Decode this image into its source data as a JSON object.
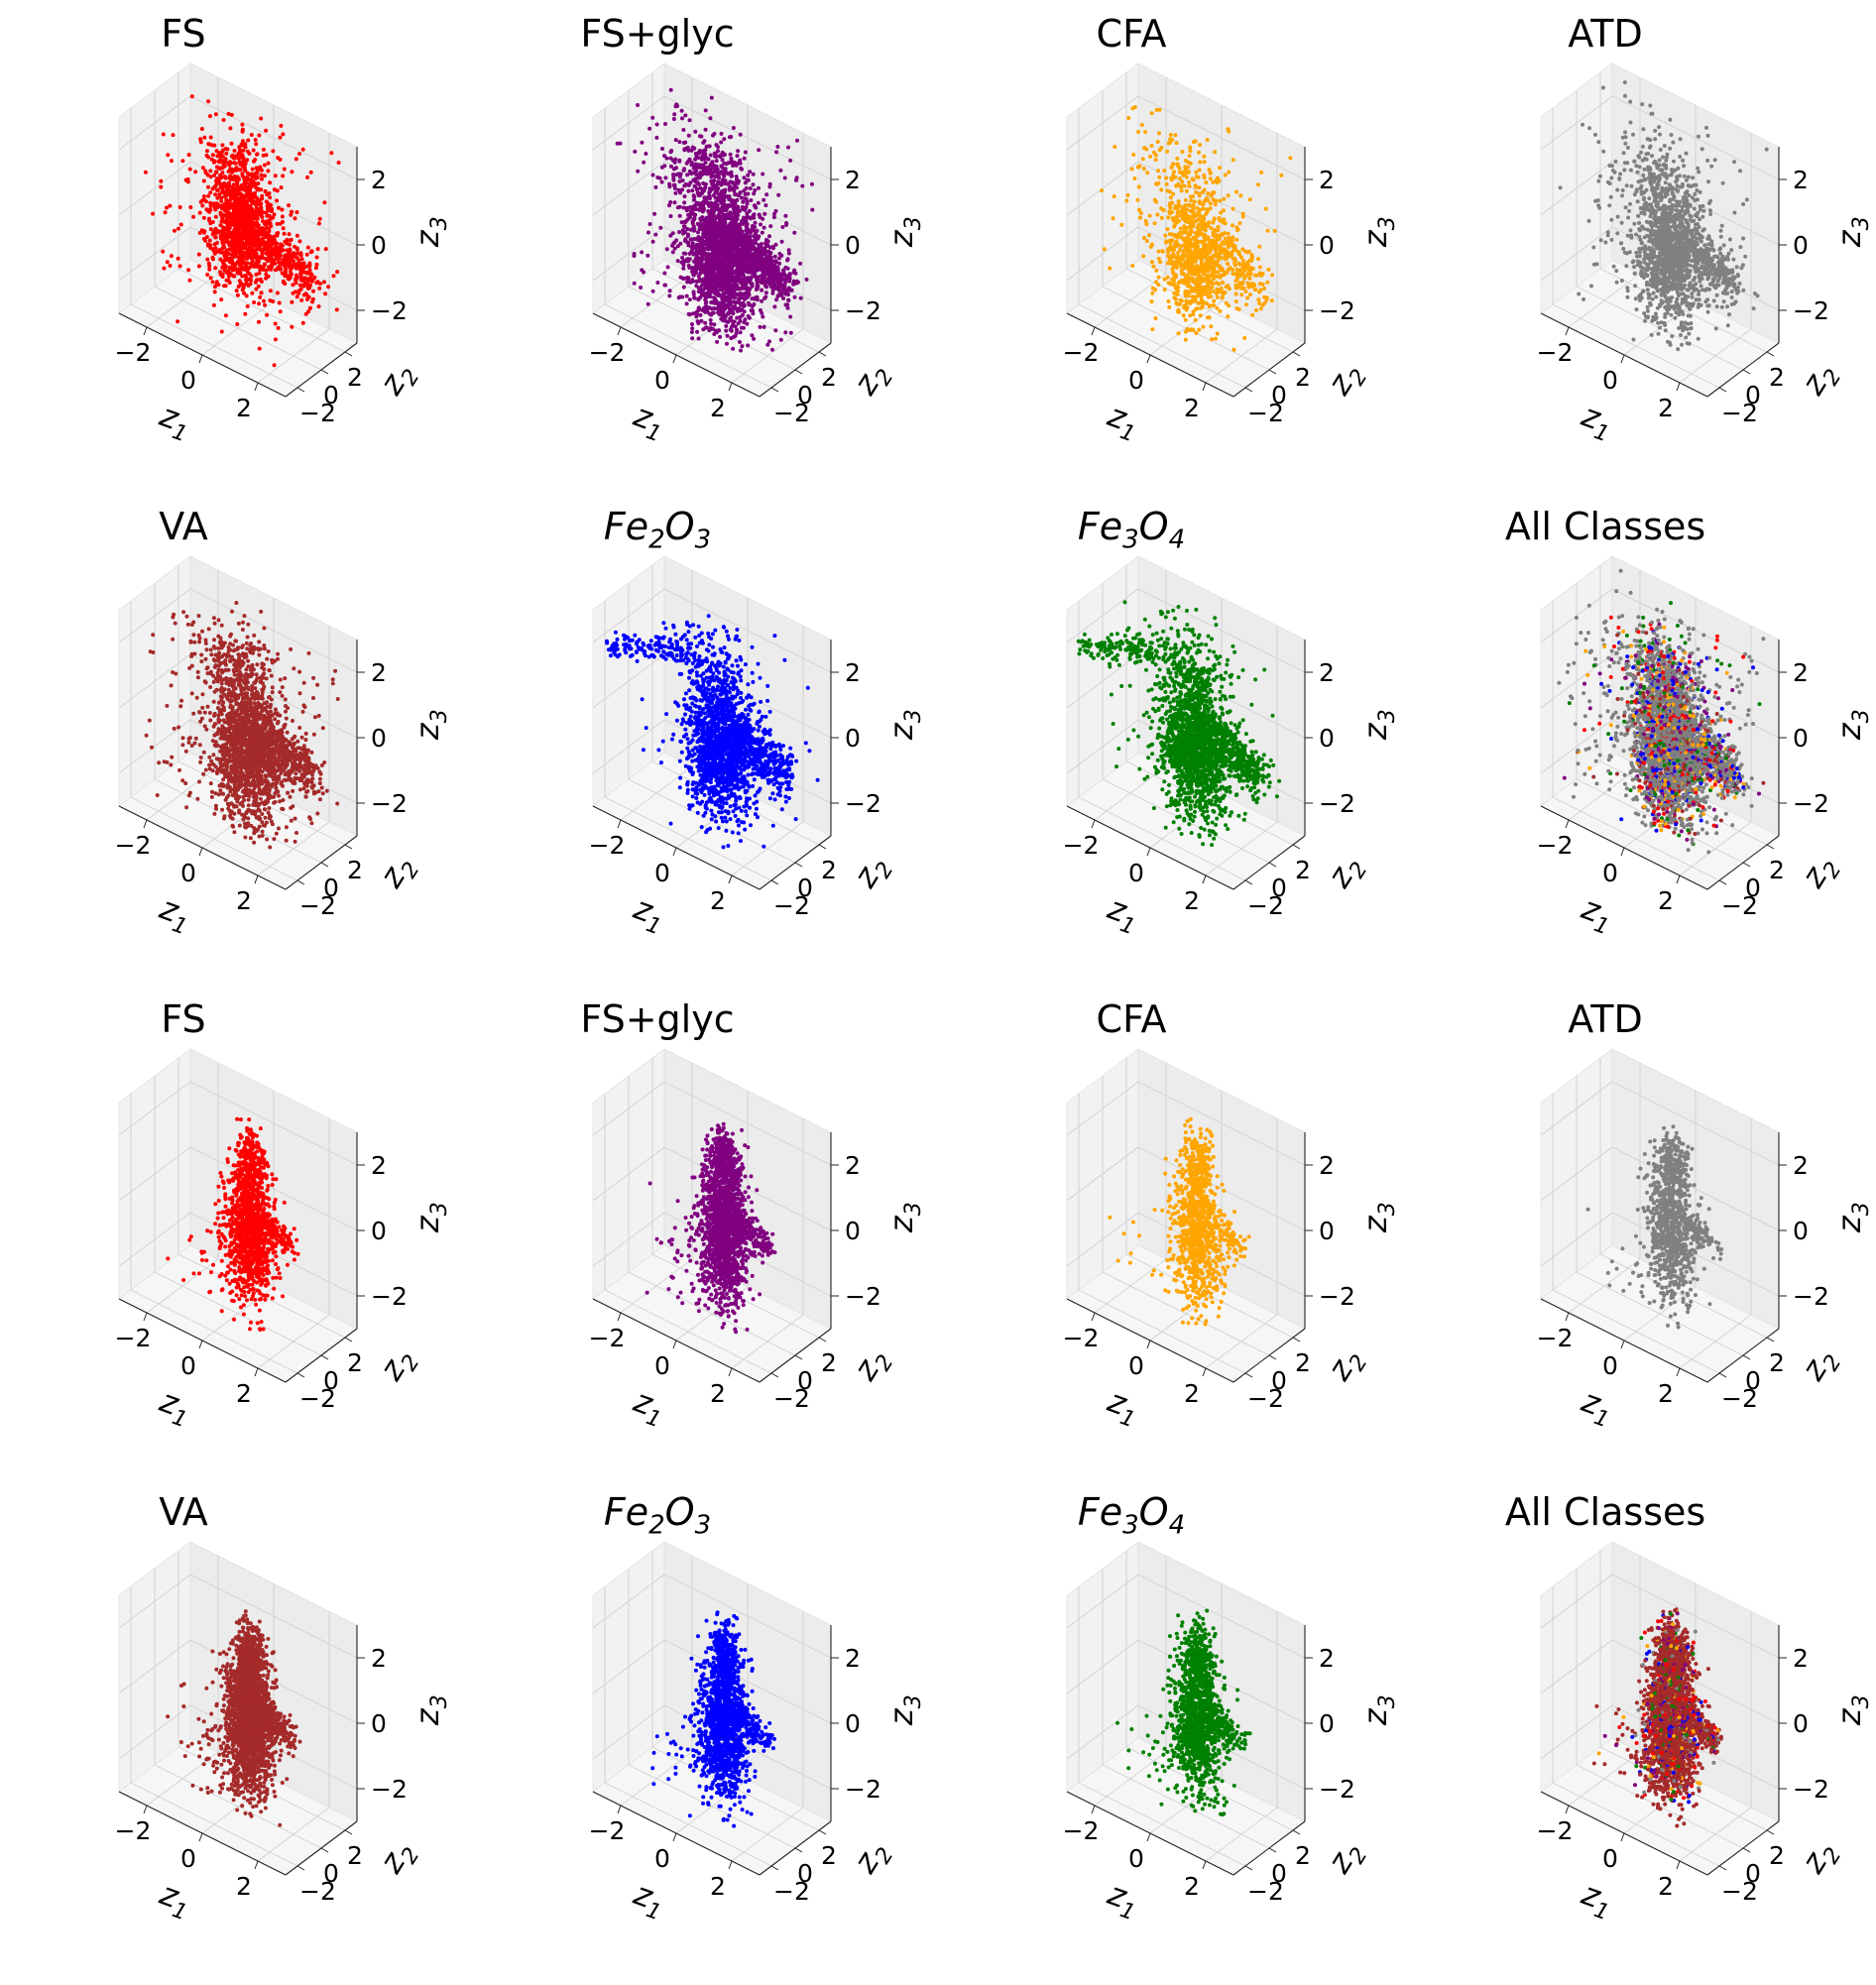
{
  "figure": {
    "rows": 4,
    "cols": 4
  },
  "axis_labels": {
    "z1": "z",
    "z1_sub": "1",
    "z2": "z",
    "z2_sub": "2",
    "z3": "z",
    "z3_sub": "3"
  },
  "tick_labels": [
    "−2",
    "0",
    "2"
  ],
  "chart_data": [
    {
      "type": "scatter",
      "title": "FS",
      "title_main": "FS",
      "color": "#ff0000",
      "shape": "fs_a",
      "n_points": 1600,
      "xlim": [
        -3,
        3
      ],
      "ylim": [
        -3,
        3
      ],
      "zlim": [
        -3,
        3
      ],
      "xticks": [
        -2,
        0,
        2
      ],
      "yticks": [
        -2,
        0,
        2
      ],
      "zticks": [
        -2,
        0,
        2
      ],
      "xlabel": "z1",
      "ylabel": "z2",
      "zlabel": "z3"
    },
    {
      "type": "scatter",
      "title": "FS+glyc",
      "title_main": "FS+glyc",
      "color": "#800080",
      "shape": "glyc_a",
      "n_points": 2600,
      "xlim": [
        -3,
        3
      ],
      "ylim": [
        -3,
        3
      ],
      "zlim": [
        -3,
        3
      ],
      "xticks": [
        -2,
        0,
        2
      ],
      "yticks": [
        -2,
        0,
        2
      ],
      "zticks": [
        -2,
        0,
        2
      ],
      "xlabel": "z1",
      "ylabel": "z2",
      "zlabel": "z3"
    },
    {
      "type": "scatter",
      "title": "CFA",
      "title_main": "CFA",
      "color": "#ffa500",
      "shape": "cfa_a",
      "n_points": 1100,
      "xlim": [
        -3,
        3
      ],
      "ylim": [
        -3,
        3
      ],
      "zlim": [
        -3,
        3
      ],
      "xticks": [
        -2,
        0,
        2
      ],
      "yticks": [
        -2,
        0,
        2
      ],
      "zticks": [
        -2,
        0,
        2
      ],
      "xlabel": "z1",
      "ylabel": "z2",
      "zlabel": "z3"
    },
    {
      "type": "scatter",
      "title": "ATD",
      "title_main": "ATD",
      "color": "#808080",
      "shape": "atd_a",
      "n_points": 1700,
      "xlim": [
        -3,
        3
      ],
      "ylim": [
        -3,
        3
      ],
      "zlim": [
        -3,
        3
      ],
      "xticks": [
        -2,
        0,
        2
      ],
      "yticks": [
        -2,
        0,
        2
      ],
      "zticks": [
        -2,
        0,
        2
      ],
      "xlabel": "z1",
      "ylabel": "z2",
      "zlabel": "z3"
    },
    {
      "type": "scatter",
      "title": "VA",
      "title_main": "VA",
      "color": "#a52a2a",
      "shape": "va_a",
      "n_points": 2200,
      "xlim": [
        -3,
        3
      ],
      "ylim": [
        -3,
        3
      ],
      "zlim": [
        -3,
        3
      ],
      "xticks": [
        -2,
        0,
        2
      ],
      "yticks": [
        -2,
        0,
        2
      ],
      "zticks": [
        -2,
        0,
        2
      ],
      "xlabel": "z1",
      "ylabel": "z2",
      "zlabel": "z3"
    },
    {
      "type": "scatter",
      "title": "Fe2O3",
      "title_main": "Fe",
      "title_sub1": "2",
      "title_mid": "O",
      "title_sub2": "3",
      "color": "#0000ff",
      "shape": "fe2_a",
      "n_points": 2000,
      "xlim": [
        -3,
        3
      ],
      "ylim": [
        -3,
        3
      ],
      "zlim": [
        -3,
        3
      ],
      "xticks": [
        -2,
        0,
        2
      ],
      "yticks": [
        -2,
        0,
        2
      ],
      "zticks": [
        -2,
        0,
        2
      ],
      "xlabel": "z1",
      "ylabel": "z2",
      "zlabel": "z3"
    },
    {
      "type": "scatter",
      "title": "Fe3O4",
      "title_main": "Fe",
      "title_sub1": "3",
      "title_mid": "O",
      "title_sub2": "4",
      "color": "#008000",
      "shape": "fe3_a",
      "n_points": 2200,
      "xlim": [
        -3,
        3
      ],
      "ylim": [
        -3,
        3
      ],
      "zlim": [
        -3,
        3
      ],
      "xticks": [
        -2,
        0,
        2
      ],
      "yticks": [
        -2,
        0,
        2
      ],
      "zticks": [
        -2,
        0,
        2
      ],
      "xlabel": "z1",
      "ylabel": "z2",
      "zlabel": "z3"
    },
    {
      "type": "scatter",
      "title": "All Classes",
      "title_main": "All Classes",
      "color": "#808080",
      "shape": "all_a",
      "n_points": 3600,
      "xlim": [
        -3,
        3
      ],
      "ylim": [
        -3,
        3
      ],
      "zlim": [
        -3,
        3
      ],
      "xticks": [
        -2,
        0,
        2
      ],
      "yticks": [
        -2,
        0,
        2
      ],
      "zticks": [
        -2,
        0,
        2
      ],
      "xlabel": "z1",
      "ylabel": "z2",
      "zlabel": "z3"
    },
    {
      "type": "scatter",
      "title": "FS",
      "title_main": "FS",
      "color": "#ff0000",
      "shape": "fs_b",
      "n_points": 1400,
      "xlim": [
        -3,
        3
      ],
      "ylim": [
        -3,
        3
      ],
      "zlim": [
        -3,
        3
      ],
      "xticks": [
        -2,
        0,
        2
      ],
      "yticks": [
        -2,
        0,
        2
      ],
      "zticks": [
        -2,
        0,
        2
      ],
      "xlabel": "z1",
      "ylabel": "z2",
      "zlabel": "z3"
    },
    {
      "type": "scatter",
      "title": "FS+glyc",
      "title_main": "FS+glyc",
      "color": "#800080",
      "shape": "glyc_b",
      "n_points": 1800,
      "xlim": [
        -3,
        3
      ],
      "ylim": [
        -3,
        3
      ],
      "zlim": [
        -3,
        3
      ],
      "xticks": [
        -2,
        0,
        2
      ],
      "yticks": [
        -2,
        0,
        2
      ],
      "zticks": [
        -2,
        0,
        2
      ],
      "xlabel": "z1",
      "ylabel": "z2",
      "zlabel": "z3"
    },
    {
      "type": "scatter",
      "title": "CFA",
      "title_main": "CFA",
      "color": "#ffa500",
      "shape": "cfa_b",
      "n_points": 1000,
      "xlim": [
        -3,
        3
      ],
      "ylim": [
        -3,
        3
      ],
      "zlim": [
        -3,
        3
      ],
      "xticks": [
        -2,
        0,
        2
      ],
      "yticks": [
        -2,
        0,
        2
      ],
      "zticks": [
        -2,
        0,
        2
      ],
      "xlabel": "z1",
      "ylabel": "z2",
      "zlabel": "z3"
    },
    {
      "type": "scatter",
      "title": "ATD",
      "title_main": "ATD",
      "color": "#808080",
      "shape": "atd_b",
      "n_points": 1000,
      "xlim": [
        -3,
        3
      ],
      "ylim": [
        -3,
        3
      ],
      "zlim": [
        -3,
        3
      ],
      "xticks": [
        -2,
        0,
        2
      ],
      "yticks": [
        -2,
        0,
        2
      ],
      "zticks": [
        -2,
        0,
        2
      ],
      "xlabel": "z1",
      "ylabel": "z2",
      "zlabel": "z3"
    },
    {
      "type": "scatter",
      "title": "VA",
      "title_main": "VA",
      "color": "#a52a2a",
      "shape": "va_b",
      "n_points": 2400,
      "xlim": [
        -3,
        3
      ],
      "ylim": [
        -3,
        3
      ],
      "zlim": [
        -3,
        3
      ],
      "xticks": [
        -2,
        0,
        2
      ],
      "yticks": [
        -2,
        0,
        2
      ],
      "zticks": [
        -2,
        0,
        2
      ],
      "xlabel": "z1",
      "ylabel": "z2",
      "zlabel": "z3"
    },
    {
      "type": "scatter",
      "title": "Fe2O3",
      "title_main": "Fe",
      "title_sub1": "2",
      "title_mid": "O",
      "title_sub2": "3",
      "color": "#0000ff",
      "shape": "fe2_b",
      "n_points": 1600,
      "xlim": [
        -3,
        3
      ],
      "ylim": [
        -3,
        3
      ],
      "zlim": [
        -3,
        3
      ],
      "xticks": [
        -2,
        0,
        2
      ],
      "yticks": [
        -2,
        0,
        2
      ],
      "zticks": [
        -2,
        0,
        2
      ],
      "xlabel": "z1",
      "ylabel": "z2",
      "zlabel": "z3"
    },
    {
      "type": "scatter",
      "title": "Fe3O4",
      "title_main": "Fe",
      "title_sub1": "3",
      "title_mid": "O",
      "title_sub2": "4",
      "color": "#008000",
      "shape": "fe3_b",
      "n_points": 1400,
      "xlim": [
        -3,
        3
      ],
      "ylim": [
        -3,
        3
      ],
      "zlim": [
        -3,
        3
      ],
      "xticks": [
        -2,
        0,
        2
      ],
      "yticks": [
        -2,
        0,
        2
      ],
      "zticks": [
        -2,
        0,
        2
      ],
      "xlabel": "z1",
      "ylabel": "z2",
      "zlabel": "z3"
    },
    {
      "type": "scatter",
      "title": "All Classes",
      "title_main": "All Classes",
      "color": "#a52a2a",
      "shape": "all_b",
      "n_points": 3000,
      "xlim": [
        -3,
        3
      ],
      "ylim": [
        -3,
        3
      ],
      "zlim": [
        -3,
        3
      ],
      "xticks": [
        -2,
        0,
        2
      ],
      "yticks": [
        -2,
        0,
        2
      ],
      "zticks": [
        -2,
        0,
        2
      ],
      "xlabel": "z1",
      "ylabel": "z2",
      "zlabel": "z3"
    }
  ],
  "all_classes_colors": [
    "#ff0000",
    "#800080",
    "#ffa500",
    "#808080",
    "#a52a2a",
    "#0000ff",
    "#008000"
  ]
}
